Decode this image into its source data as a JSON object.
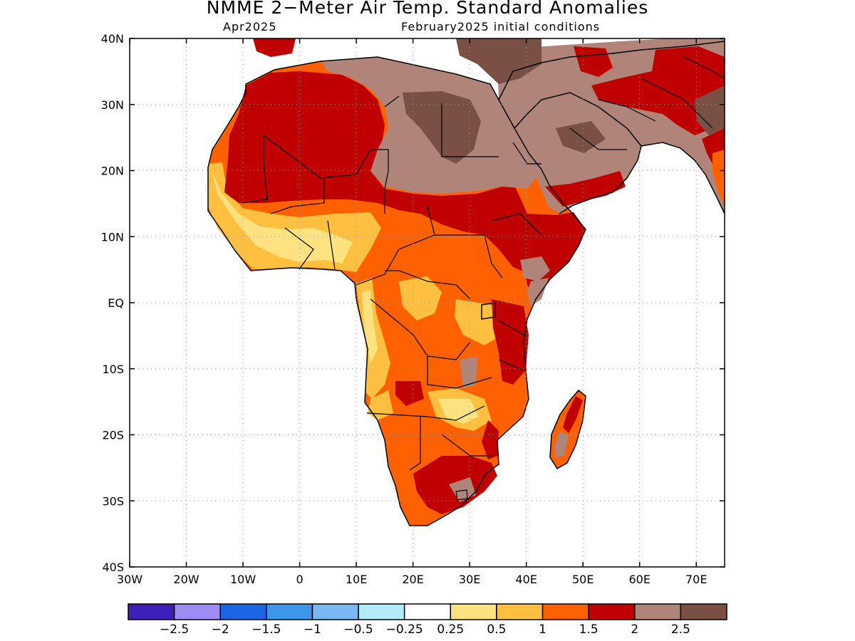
{
  "header": {
    "title": "NMME 2−Meter Air Temp. Standard Anomalies",
    "target_month": "Apr2025",
    "initial_conditions": "February2025 initial conditions"
  },
  "map": {
    "lon_range": [
      -30,
      75
    ],
    "lat_range": [
      -40,
      40
    ],
    "x_ticks": [
      {
        "value": -30,
        "label": "30W"
      },
      {
        "value": -20,
        "label": "20W"
      },
      {
        "value": -10,
        "label": "10W"
      },
      {
        "value": 0,
        "label": "0"
      },
      {
        "value": 10,
        "label": "10E"
      },
      {
        "value": 20,
        "label": "20E"
      },
      {
        "value": 30,
        "label": "30E"
      },
      {
        "value": 40,
        "label": "40E"
      },
      {
        "value": 50,
        "label": "50E"
      },
      {
        "value": 60,
        "label": "60E"
      },
      {
        "value": 70,
        "label": "70E"
      }
    ],
    "y_ticks": [
      {
        "value": 40,
        "label": "40N"
      },
      {
        "value": 30,
        "label": "30N"
      },
      {
        "value": 20,
        "label": "20N"
      },
      {
        "value": 10,
        "label": "10N"
      },
      {
        "value": 0,
        "label": "EQ"
      },
      {
        "value": -10,
        "label": "10S"
      },
      {
        "value": -20,
        "label": "20S"
      },
      {
        "value": -30,
        "label": "30S"
      },
      {
        "value": -40,
        "label": "40S"
      }
    ],
    "grid": "dotted"
  },
  "colorbar": {
    "colors": [
      "#3e1fb8",
      "#9c8cf4",
      "#1c64e4",
      "#3c96ec",
      "#7ab8f4",
      "#b2ecf8",
      "#ffffff",
      "#ffe280",
      "#ffc040",
      "#ff6000",
      "#c00000",
      "#b08478",
      "#7a5044"
    ],
    "labels": [
      "−2.5",
      "−2",
      "−1.5",
      "−1",
      "−0.5",
      "−0.25",
      "0.25",
      "0.5",
      "1",
      "1.5",
      "2",
      "2.5"
    ]
  }
}
